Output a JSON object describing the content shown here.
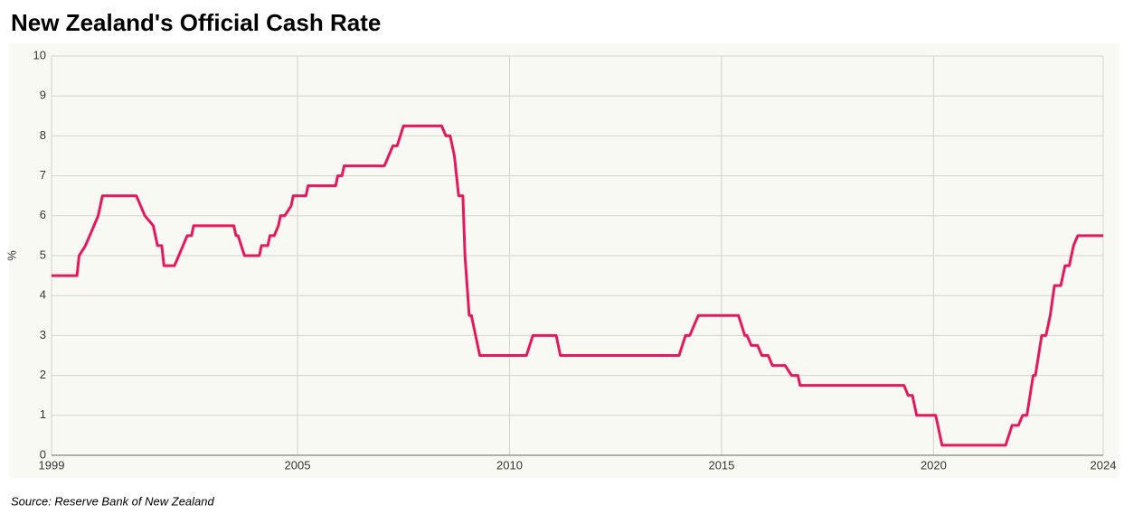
{
  "chart_data": {
    "type": "line",
    "title": "New Zealand's Official Cash Rate",
    "source": "Source: Reserve Bank of New Zealand",
    "y_label": "%",
    "x": [
      1999.2,
      1999.8,
      1999.85,
      2000.0,
      2000.2,
      2000.3,
      2000.4,
      2001.2,
      2001.3,
      2001.4,
      2001.6,
      2001.7,
      2001.8,
      2001.85,
      2002.1,
      2002.2,
      2002.3,
      2002.4,
      2002.5,
      2002.55,
      2003.5,
      2003.55,
      2003.6,
      2003.75,
      2004.1,
      2004.15,
      2004.3,
      2004.35,
      2004.45,
      2004.55,
      2004.6,
      2004.7,
      2004.85,
      2004.9,
      2005.2,
      2005.25,
      2005.9,
      2005.95,
      2006.05,
      2006.1,
      2007.05,
      2007.15,
      2007.25,
      2007.35,
      2007.5,
      2008.4,
      2008.5,
      2008.6,
      2008.7,
      2008.8,
      2008.9,
      2008.95,
      2009.05,
      2009.1,
      2009.3,
      2010.4,
      2010.55,
      2011.1,
      2011.2,
      2014.0,
      2014.15,
      2014.25,
      2014.45,
      2015.4,
      2015.55,
      2015.6,
      2015.7,
      2015.85,
      2015.95,
      2016.1,
      2016.2,
      2016.5,
      2016.65,
      2016.8,
      2016.85,
      2019.3,
      2019.4,
      2019.5,
      2019.6,
      2020.05,
      2020.2,
      2021.7,
      2021.85,
      2022.0,
      2022.1,
      2022.2,
      2022.35,
      2022.4,
      2022.55,
      2022.65,
      2022.75,
      2022.85,
      2023.0,
      2023.1,
      2023.2,
      2023.3,
      2023.4,
      2024.0
    ],
    "series": [
      {
        "name": "Official Cash Rate",
        "color": "#e8175d",
        "values": [
          4.5,
          4.5,
          5.0,
          5.25,
          5.75,
          6.0,
          6.5,
          6.5,
          6.25,
          6.0,
          5.75,
          5.25,
          5.25,
          4.75,
          4.75,
          5.0,
          5.25,
          5.5,
          5.5,
          5.75,
          5.75,
          5.5,
          5.5,
          5.0,
          5.0,
          5.25,
          5.25,
          5.5,
          5.5,
          5.75,
          6.0,
          6.0,
          6.25,
          6.5,
          6.5,
          6.75,
          6.75,
          7.0,
          7.0,
          7.25,
          7.25,
          7.5,
          7.75,
          7.75,
          8.25,
          8.25,
          8.0,
          8.0,
          7.5,
          6.5,
          6.5,
          5.0,
          3.5,
          3.5,
          2.5,
          2.5,
          3.0,
          3.0,
          2.5,
          2.5,
          3.0,
          3.0,
          3.5,
          3.5,
          3.0,
          3.0,
          2.75,
          2.75,
          2.5,
          2.5,
          2.25,
          2.25,
          2.0,
          2.0,
          1.75,
          1.75,
          1.5,
          1.5,
          1.0,
          1.0,
          0.25,
          0.25,
          0.75,
          0.75,
          1.0,
          1.0,
          2.0,
          2.0,
          3.0,
          3.0,
          3.5,
          4.25,
          4.25,
          4.75,
          4.75,
          5.25,
          5.5,
          5.5
        ]
      }
    ],
    "xlim": [
      1999.2,
      2024
    ],
    "xticks": [
      {
        "value": 1999.2,
        "label": "1999"
      },
      2005,
      2010,
      2015,
      2020,
      2024
    ],
    "ylim": [
      0,
      10
    ],
    "yticks": [
      0,
      1,
      2,
      3,
      4,
      5,
      6,
      7,
      8,
      9,
      10
    ],
    "grid": true
  }
}
